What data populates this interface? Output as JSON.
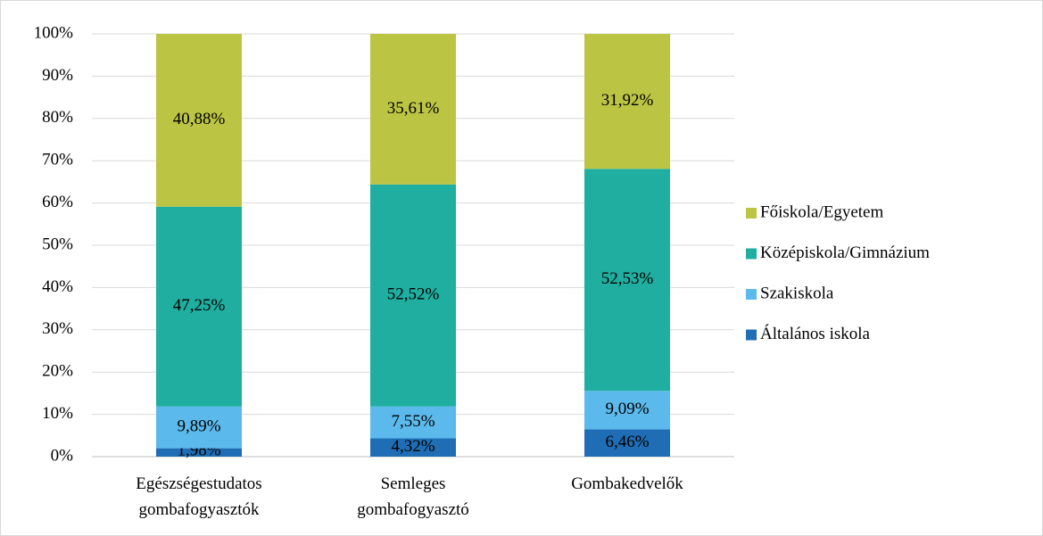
{
  "chart_data": {
    "type": "stacked_bar",
    "categories": [
      "Egészségestudatos gombafogyasztók",
      "Semleges gombafogyasztó",
      "Gombakedvelők"
    ],
    "series": [
      {
        "name": "Általános iskola",
        "color": "#1f6db4",
        "values": [
          1.98,
          4.32,
          6.46
        ],
        "value_labels": [
          "1,98%",
          "4,32%",
          "6,46%"
        ]
      },
      {
        "name": "Szakiskola",
        "color": "#5cb9ec",
        "values": [
          9.89,
          7.55,
          9.09
        ],
        "value_labels": [
          "9,89%",
          "7,55%",
          "9,09%"
        ]
      },
      {
        "name": "Középiskola/Gimnázium",
        "color": "#1fae9f",
        "values": [
          47.25,
          52.52,
          52.53
        ],
        "value_labels": [
          "47,25%",
          "52,52%",
          "52,53%"
        ]
      },
      {
        "name": "Főiskola/Egyetem",
        "color": "#bcc443",
        "values": [
          40.88,
          35.61,
          31.92
        ],
        "value_labels": [
          "40,88%",
          "35,61%",
          "31,92%"
        ]
      }
    ],
    "ylim": [
      0,
      100
    ],
    "yticks": [
      {
        "value": 0,
        "label": "0%"
      },
      {
        "value": 10,
        "label": "10%"
      },
      {
        "value": 20,
        "label": "20%"
      },
      {
        "value": 30,
        "label": "30%"
      },
      {
        "value": 40,
        "label": "40%"
      },
      {
        "value": 50,
        "label": "50%"
      },
      {
        "value": 60,
        "label": "60%"
      },
      {
        "value": 70,
        "label": "70%"
      },
      {
        "value": 80,
        "label": "80%"
      },
      {
        "value": 90,
        "label": "90%"
      },
      {
        "value": 100,
        "label": "100%"
      }
    ],
    "grid": true,
    "legend": "right"
  }
}
